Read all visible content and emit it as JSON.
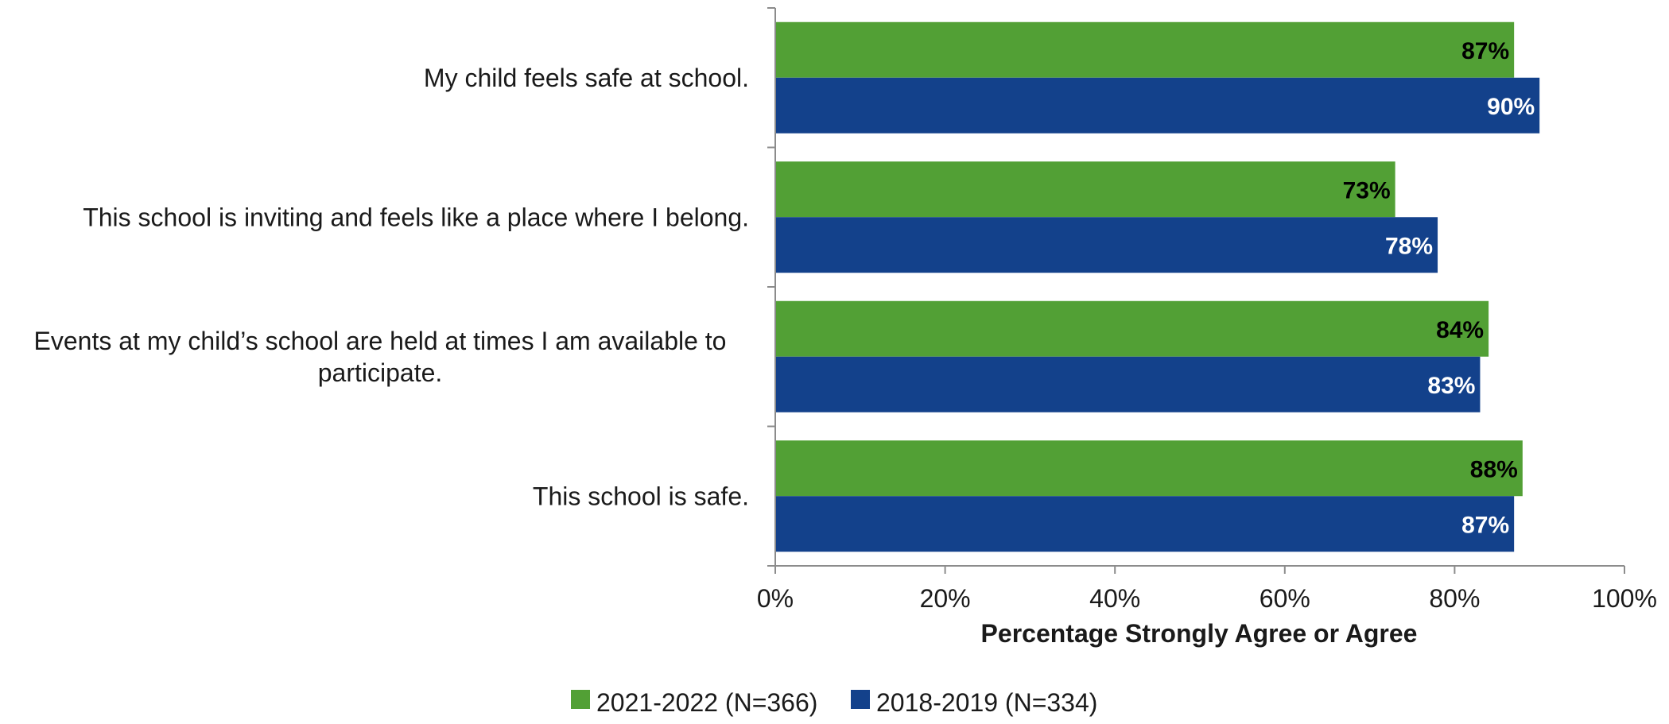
{
  "chart_data": {
    "type": "bar",
    "orientation": "horizontal",
    "categories": [
      [
        "My child feels safe at school."
      ],
      [
        "This school is inviting and feels like a place where I belong."
      ],
      [
        "Events at my child’s school are held at times I am available to",
        "participate."
      ],
      [
        "This school is safe."
      ]
    ],
    "series": [
      {
        "name": "2021-2022 (N=366)",
        "color": "#52a035",
        "label_color": "#000000",
        "values": [
          87,
          73,
          84,
          88
        ]
      },
      {
        "name": "2018-2019 (N=334)",
        "color": "#13418b",
        "label_color": "#ffffff",
        "values": [
          90,
          78,
          83,
          87
        ]
      }
    ],
    "xlabel": "Percentage Strongly Agree or Agree",
    "xlim": [
      0,
      100
    ],
    "xticks": [
      "0%",
      "20%",
      "40%",
      "60%",
      "80%",
      "100%"
    ],
    "grid": false,
    "legend_position": "bottom"
  }
}
